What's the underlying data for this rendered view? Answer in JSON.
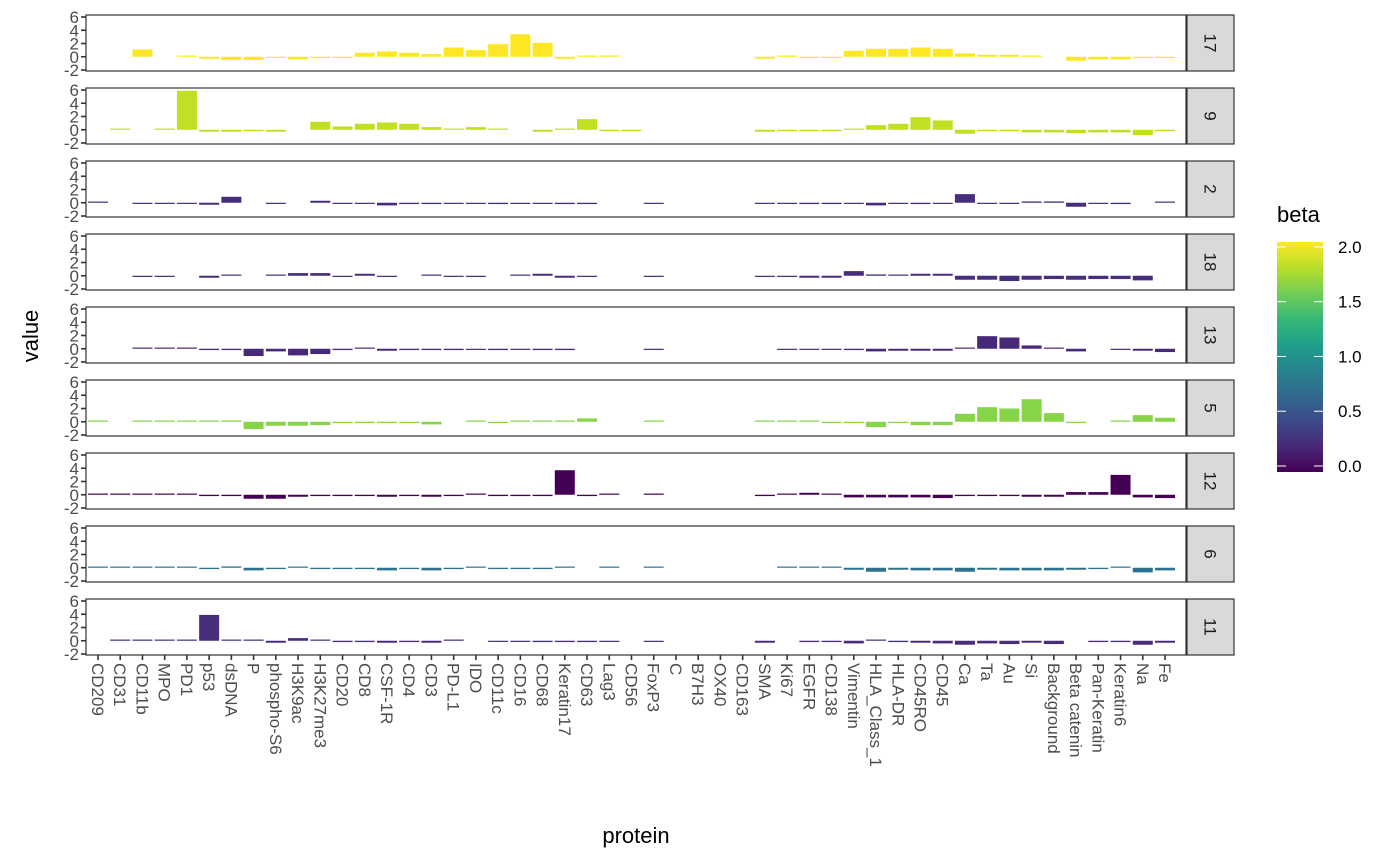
{
  "chart_data": {
    "type": "bar",
    "faceted": true,
    "xlabel": "protein",
    "ylabel": "value",
    "ylim": [
      -2,
      6
    ],
    "yticks": [
      -2,
      0,
      2,
      4,
      6
    ],
    "ytick_labels": [
      "-2",
      "0",
      "2",
      "4",
      "6"
    ],
    "grid": false,
    "categories": [
      "CD209",
      "CD31",
      "CD11b",
      "MPO",
      "PD1",
      "p53",
      "dsDNA",
      "P",
      "phospho-S6",
      "H3K9ac",
      "H3K27me3",
      "CD20",
      "CD8",
      "CSF-1R",
      "CD4",
      "CD3",
      "PD-L1",
      "IDO",
      "CD11c",
      "CD16",
      "CD68",
      "Keratin17",
      "CD63",
      "Lag3",
      "CD56",
      "FoxP3",
      "C",
      "B7H3",
      "OX40",
      "CD163",
      "SMA",
      "Ki67",
      "EGFR",
      "CD138",
      "Vimentin",
      "HLA_Class_1",
      "HLA-DR",
      "CD45RO",
      "CD45",
      "Ca",
      "Ta",
      "Au",
      "Si",
      "Background",
      "Beta catenin",
      "Pan-Keratin",
      "Keratin6",
      "Na",
      "Fe"
    ],
    "legend": {
      "title": "beta",
      "type": "colorbar",
      "placement": "right",
      "range": [
        0,
        2.1
      ],
      "ticks": [
        0.0,
        0.5,
        1.0,
        1.5,
        2.0
      ],
      "tick_labels": [
        "0.0",
        "0.5",
        "1.0",
        "1.5",
        "2.0"
      ],
      "palette": [
        "#440154",
        "#482878",
        "#3E4A89",
        "#31688E",
        "#26828E",
        "#1F9E89",
        "#35B779",
        "#6DCD59",
        "#B4DE2C",
        "#FDE725"
      ]
    },
    "series": [
      {
        "name": "17",
        "beta": 2.1,
        "color": "#FDE725",
        "values": [
          null,
          null,
          1.1,
          null,
          0.1,
          -0.3,
          -0.5,
          -0.5,
          -0.1,
          -0.4,
          -0.2,
          -0.2,
          0.6,
          0.8,
          0.6,
          0.4,
          1.4,
          1.0,
          1.9,
          3.4,
          2.1,
          -0.3,
          0.1,
          0.1,
          null,
          null,
          null,
          null,
          null,
          null,
          -0.3,
          0.1,
          -0.2,
          -0.2,
          0.9,
          1.2,
          1.2,
          1.4,
          1.2,
          0.5,
          0.3,
          0.3,
          0.1,
          null,
          -0.6,
          -0.4,
          -0.4,
          -0.2,
          -0.2
        ]
      },
      {
        "name": "9",
        "beta": 1.85,
        "color": "#C2DF23",
        "values": [
          null,
          0.0,
          null,
          0.0,
          5.9,
          -0.3,
          -0.3,
          -0.2,
          -0.3,
          null,
          1.2,
          0.5,
          0.9,
          1.1,
          0.9,
          0.4,
          0.1,
          0.4,
          0.1,
          null,
          -0.3,
          0.0,
          1.6,
          -0.2,
          -0.2,
          null,
          null,
          null,
          null,
          null,
          -0.3,
          -0.2,
          -0.2,
          -0.2,
          0.1,
          0.7,
          0.9,
          1.9,
          1.4,
          -0.6,
          -0.2,
          -0.2,
          -0.4,
          -0.4,
          -0.5,
          -0.4,
          -0.4,
          -0.8,
          -0.2
        ]
      },
      {
        "name": "2",
        "beta": 0.25,
        "color": "#472D7B",
        "values": [
          0.1,
          null,
          -0.1,
          -0.1,
          -0.1,
          -0.3,
          0.9,
          null,
          -0.1,
          null,
          0.3,
          -0.1,
          -0.1,
          -0.4,
          -0.2,
          -0.2,
          -0.1,
          -0.1,
          -0.2,
          -0.1,
          -0.1,
          -0.2,
          -0.2,
          null,
          null,
          -0.1,
          null,
          null,
          null,
          null,
          -0.1,
          -0.1,
          -0.2,
          -0.2,
          -0.1,
          -0.4,
          -0.1,
          -0.2,
          -0.1,
          1.3,
          -0.1,
          -0.1,
          0.2,
          0.2,
          -0.6,
          -0.1,
          -0.2,
          null,
          0.1
        ]
      },
      {
        "name": "18",
        "beta": 0.22,
        "color": "#472D7B",
        "values": [
          null,
          null,
          -0.1,
          -0.1,
          null,
          -0.3,
          0.1,
          null,
          0.1,
          0.4,
          0.4,
          -0.1,
          0.3,
          -0.1,
          null,
          0.1,
          -0.1,
          -0.1,
          null,
          0.1,
          0.3,
          -0.3,
          -0.1,
          null,
          null,
          -0.1,
          null,
          null,
          null,
          null,
          -0.1,
          -0.1,
          -0.3,
          -0.3,
          0.7,
          0.2,
          0.1,
          0.3,
          0.3,
          -0.6,
          -0.6,
          -0.8,
          -0.6,
          -0.5,
          -0.6,
          -0.5,
          -0.5,
          -0.7,
          null
        ]
      },
      {
        "name": "13",
        "beta": 0.25,
        "color": "#482878",
        "values": [
          null,
          null,
          0.0,
          0.0,
          0.0,
          -0.2,
          -0.2,
          -1.1,
          -0.4,
          -1.0,
          -0.8,
          -0.2,
          0.0,
          -0.3,
          -0.2,
          -0.2,
          -0.2,
          -0.1,
          -0.2,
          -0.1,
          -0.2,
          -0.2,
          null,
          null,
          null,
          -0.1,
          null,
          null,
          null,
          null,
          null,
          -0.1,
          -0.1,
          -0.1,
          -0.2,
          -0.4,
          -0.3,
          -0.3,
          -0.3,
          0.0,
          1.9,
          1.7,
          0.5,
          0.0,
          -0.4,
          null,
          -0.1,
          -0.3,
          -0.5
        ]
      },
      {
        "name": "5",
        "beta": 1.65,
        "color": "#86D549",
        "values": [
          0.0,
          null,
          0.0,
          0.0,
          0.0,
          0.0,
          0.2,
          -1.1,
          -0.6,
          -0.6,
          -0.5,
          -0.2,
          -0.2,
          -0.2,
          -0.2,
          -0.4,
          null,
          0.0,
          -0.2,
          0.0,
          0.0,
          0.0,
          0.5,
          null,
          null,
          0.0,
          null,
          null,
          null,
          null,
          0.0,
          0.0,
          0.0,
          -0.2,
          -0.2,
          -0.8,
          -0.2,
          -0.5,
          -0.5,
          1.2,
          2.2,
          2.0,
          3.4,
          1.3,
          -0.2,
          null,
          0.1,
          1.0,
          0.6
        ]
      },
      {
        "name": "12",
        "beta": 0.0,
        "color": "#440154",
        "values": [
          0.0,
          0.0,
          0.0,
          0.0,
          0.0,
          -0.2,
          -0.2,
          -0.6,
          -0.6,
          -0.3,
          -0.2,
          -0.2,
          -0.2,
          -0.3,
          -0.2,
          -0.3,
          -0.2,
          0.0,
          -0.2,
          -0.2,
          -0.2,
          3.7,
          -0.2,
          0.0,
          null,
          0.0,
          null,
          null,
          null,
          null,
          -0.2,
          0.0,
          0.3,
          0.0,
          -0.4,
          -0.4,
          -0.4,
          -0.4,
          -0.5,
          -0.2,
          -0.2,
          -0.2,
          -0.3,
          -0.3,
          0.4,
          0.4,
          3.0,
          -0.4,
          -0.5
        ]
      },
      {
        "name": "6",
        "beta": 0.85,
        "color": "#2C728E",
        "values": [
          0.0,
          0.0,
          0.0,
          0.0,
          0.0,
          -0.2,
          0.2,
          -0.4,
          -0.2,
          0.0,
          -0.2,
          -0.2,
          -0.2,
          -0.4,
          -0.2,
          -0.4,
          -0.2,
          0.0,
          -0.2,
          -0.2,
          -0.2,
          0.0,
          null,
          0.0,
          null,
          0.0,
          null,
          null,
          null,
          null,
          null,
          0.0,
          0.0,
          0.0,
          -0.3,
          -0.6,
          -0.3,
          -0.4,
          -0.4,
          -0.6,
          -0.3,
          -0.4,
          -0.4,
          -0.4,
          -0.3,
          -0.2,
          0.0,
          -0.7,
          -0.4
        ]
      },
      {
        "name": "11",
        "beta": 0.25,
        "color": "#472D7B",
        "values": [
          null,
          0.0,
          0.0,
          0.0,
          0.0,
          3.9,
          0.1,
          0.0,
          -0.3,
          0.4,
          0.1,
          -0.2,
          -0.2,
          -0.3,
          -0.2,
          -0.3,
          0.0,
          null,
          -0.1,
          -0.1,
          -0.2,
          -0.2,
          -0.2,
          -0.1,
          null,
          -0.1,
          null,
          null,
          null,
          null,
          -0.3,
          null,
          -0.2,
          -0.2,
          -0.4,
          0.1,
          -0.2,
          -0.3,
          -0.4,
          -0.6,
          -0.4,
          -0.5,
          -0.3,
          -0.5,
          null,
          -0.2,
          -0.2,
          -0.6,
          -0.3
        ]
      }
    ]
  }
}
